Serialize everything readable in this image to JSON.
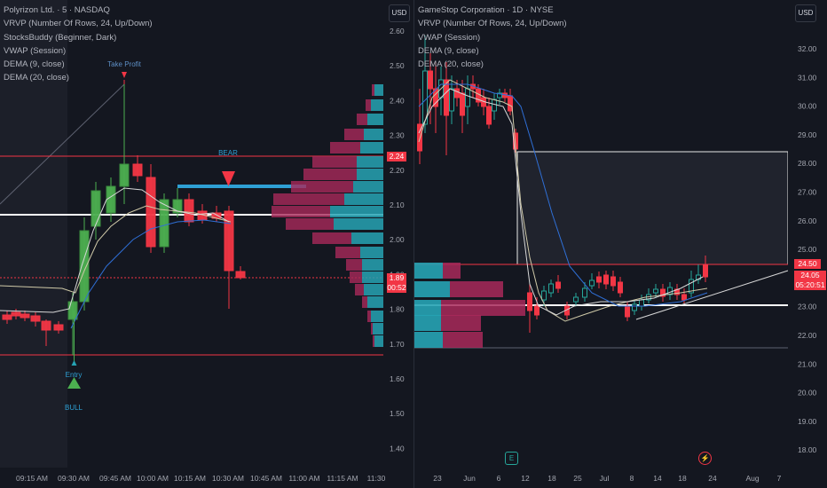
{
  "left_chart": {
    "legend": [
      "Polyrizon Ltd. · 5 · NASDAQ",
      "VRVP (Number Of Rows, 24, Up/Down)",
      "StocksBuddy (Beginner, Dark)",
      "VWAP (Session)",
      "DEMA (9, close)",
      "DEMA (20, close)"
    ],
    "currency_button": "USD",
    "price_axis": [
      "2.60",
      "2.50",
      "2.40",
      "2.30",
      "2.20",
      "2.10",
      "2.00",
      "1.90",
      "1.80",
      "1.70",
      "1.60",
      "1.50",
      "1.40"
    ],
    "time_axis": [
      "09:15 AM",
      "09:30 AM",
      "09:45 AM",
      "10:00 AM",
      "10:15 AM",
      "10:30 AM",
      "10:45 AM",
      "11:00 AM",
      "11:15 AM",
      "11:30"
    ],
    "annotations": {
      "take_profit": "Take Profit",
      "bear": "BEAR",
      "entry": "Entry",
      "bull": "BULL"
    },
    "price_tags": {
      "level": "2.24",
      "last": "1.89",
      "countdown": "00:52"
    },
    "colors": {
      "up": "#4caf50",
      "down": "#f23645",
      "vol_up": "#26a3b4",
      "vol_down": "#a8295a",
      "bear_line": "#2ea0d4"
    }
  },
  "right_chart": {
    "legend": [
      "GameStop Corporation · 1D · NYSE",
      "VRVP (Number Of Rows, 24, Up/Down)",
      "VWAP (Session)",
      "DEMA (9, close)",
      "DEMA (20, close)"
    ],
    "currency_button": "USD",
    "price_axis": [
      "32.00",
      "31.00",
      "30.00",
      "29.00",
      "28.00",
      "27.00",
      "26.00",
      "25.00",
      "24.00",
      "23.00",
      "22.00",
      "21.00",
      "20.00",
      "19.00",
      "18.00"
    ],
    "time_axis": [
      "23",
      "Jun",
      "6",
      "12",
      "18",
      "25",
      "Jul",
      "8",
      "14",
      "18",
      "24",
      "Aug",
      "7"
    ],
    "price_tags": {
      "level": "24.50",
      "last": "24.05",
      "countdown": "05:20:51"
    },
    "markers": {
      "earnings": "E",
      "split": "⚡"
    }
  }
}
